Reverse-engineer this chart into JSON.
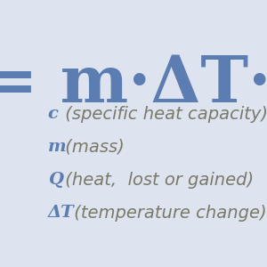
{
  "bg_color": "#dde3ef",
  "formula_color": "#5b7db1",
  "label_color": "#5b7db1",
  "desc_color": "#7a7a6a",
  "formula_text": "= m·ΔT·c",
  "formula_fontsize": 52,
  "items": [
    {
      "label": "c",
      "desc": " (specific heat capacity)"
    },
    {
      "label": "m",
      "desc": " (mass)"
    },
    {
      "label": "Q",
      "desc": " (heat,  lost or gained)"
    },
    {
      "label": "ΔT",
      "desc": " (temperature change)"
    }
  ],
  "item_fontsize": 14,
  "label_fontsize": 14
}
